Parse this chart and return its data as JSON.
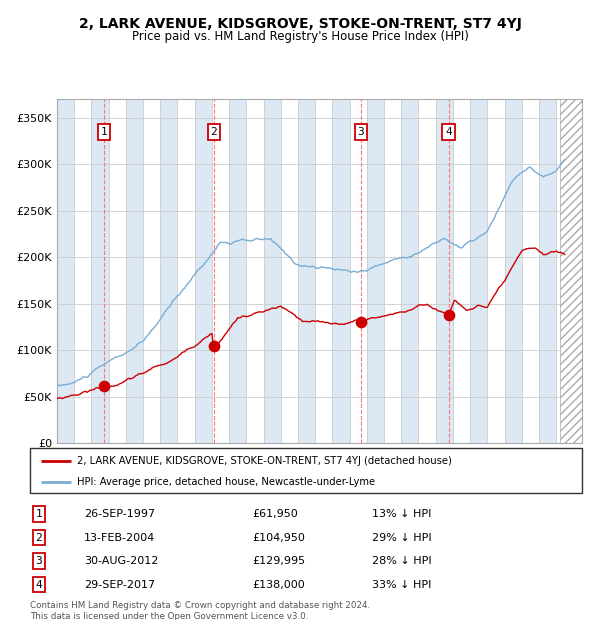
{
  "title": "2, LARK AVENUE, KIDSGROVE, STOKE-ON-TRENT, ST7 4YJ",
  "subtitle": "Price paid vs. HM Land Registry's House Price Index (HPI)",
  "ylim": [
    0,
    370000
  ],
  "yticks": [
    0,
    50000,
    100000,
    150000,
    200000,
    250000,
    300000,
    350000
  ],
  "xlim_start": 1995.0,
  "xlim_end": 2025.5,
  "sale_dates": [
    1997.73,
    2004.12,
    2012.66,
    2017.75
  ],
  "sale_prices": [
    61950,
    104950,
    129995,
    138000
  ],
  "sale_labels": [
    "1",
    "2",
    "3",
    "4"
  ],
  "legend_red": "2, LARK AVENUE, KIDSGROVE, STOKE-ON-TRENT, ST7 4YJ (detached house)",
  "legend_blue": "HPI: Average price, detached house, Newcastle-under-Lyme",
  "table_rows": [
    [
      "1",
      "26-SEP-1997",
      "£61,950",
      "13% ↓ HPI"
    ],
    [
      "2",
      "13-FEB-2004",
      "£104,950",
      "29% ↓ HPI"
    ],
    [
      "3",
      "30-AUG-2012",
      "£129,995",
      "28% ↓ HPI"
    ],
    [
      "4",
      "29-SEP-2017",
      "£138,000",
      "33% ↓ HPI"
    ]
  ],
  "footer": "Contains HM Land Registry data © Crown copyright and database right 2024.\nThis data is licensed under the Open Government Licence v3.0.",
  "bg_color": "#ffffff",
  "band_color": "#dce9f5",
  "grid_color": "#cccccc",
  "line_red": "#cc0000",
  "line_blue": "#7aadd4"
}
